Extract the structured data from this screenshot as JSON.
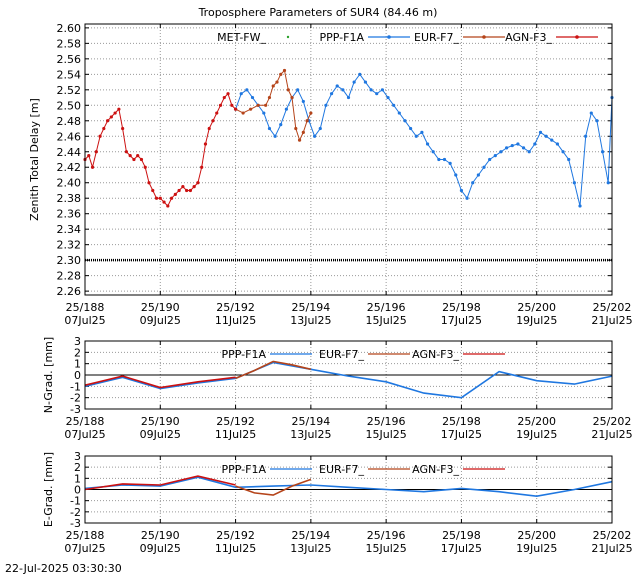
{
  "footer": {
    "timestamp": "22-Jul-2025 03:30:30"
  },
  "colors": {
    "met": "#2ca02c",
    "ppp": "#1f77e0",
    "eur": "#b5441a",
    "agn": "#cc1111",
    "grid": "#999999"
  },
  "x_ticks": [
    {
      "x": 188,
      "top": "25/188",
      "bottom": "07Jul25"
    },
    {
      "x": 190,
      "top": "25/190",
      "bottom": "09Jul25"
    },
    {
      "x": 192,
      "top": "25/192",
      "bottom": "11Jul25"
    },
    {
      "x": 194,
      "top": "25/194",
      "bottom": "13Jul25"
    },
    {
      "x": 196,
      "top": "25/196",
      "bottom": "15Jul25"
    },
    {
      "x": 198,
      "top": "25/198",
      "bottom": "17Jul25"
    },
    {
      "x": 200,
      "top": "25/200",
      "bottom": "19Jul25"
    },
    {
      "x": 202,
      "top": "25/202",
      "bottom": "21Jul25"
    }
  ],
  "chart_data": [
    {
      "type": "line",
      "title": "Troposphere Parameters of SUR4 (84.46 m)",
      "ylabel": "Zenith Total Delay [m]",
      "xlim": [
        188,
        202
      ],
      "ylim": [
        2.255,
        2.605
      ],
      "yticks": [
        2.26,
        2.28,
        2.3,
        2.32,
        2.34,
        2.36,
        2.38,
        2.4,
        2.42,
        2.44,
        2.46,
        2.48,
        2.5,
        2.52,
        2.54,
        2.56,
        2.58,
        2.6
      ],
      "grid": true,
      "legend_position": "top",
      "series": [
        {
          "name": "MET-FW_",
          "color": "#2ca02c",
          "style": "points",
          "x": [
            188,
            202
          ],
          "y": [
            2.3,
            2.3
          ]
        },
        {
          "name": "PPP-F1A",
          "color": "#1f77e0",
          "style": "line-points",
          "x": [
            192.0,
            192.15,
            192.3,
            192.45,
            192.6,
            192.75,
            192.9,
            193.05,
            193.2,
            193.35,
            193.5,
            193.65,
            193.8,
            193.95,
            194.1,
            194.25,
            194.4,
            194.55,
            194.7,
            194.85,
            195.0,
            195.15,
            195.3,
            195.45,
            195.6,
            195.75,
            195.9,
            196.05,
            196.2,
            196.35,
            196.5,
            196.65,
            196.8,
            196.95,
            197.1,
            197.25,
            197.4,
            197.55,
            197.7,
            197.85,
            198.0,
            198.15,
            198.3,
            198.45,
            198.6,
            198.75,
            198.9,
            199.05,
            199.2,
            199.35,
            199.5,
            199.65,
            199.8,
            199.95,
            200.1,
            200.25,
            200.4,
            200.55,
            200.7,
            200.85,
            201.0,
            201.15,
            201.3,
            201.45,
            201.6,
            201.75,
            201.9,
            202.0
          ],
          "y": [
            2.495,
            2.515,
            2.52,
            2.51,
            2.5,
            2.49,
            2.47,
            2.46,
            2.475,
            2.495,
            2.51,
            2.52,
            2.505,
            2.48,
            2.46,
            2.47,
            2.5,
            2.515,
            2.525,
            2.52,
            2.51,
            2.53,
            2.54,
            2.53,
            2.52,
            2.515,
            2.52,
            2.51,
            2.5,
            2.49,
            2.48,
            2.47,
            2.46,
            2.465,
            2.45,
            2.44,
            2.43,
            2.43,
            2.425,
            2.41,
            2.39,
            2.38,
            2.4,
            2.41,
            2.42,
            2.43,
            2.435,
            2.44,
            2.445,
            2.448,
            2.45,
            2.445,
            2.44,
            2.45,
            2.465,
            2.46,
            2.455,
            2.45,
            2.44,
            2.43,
            2.4,
            2.37,
            2.46,
            2.49,
            2.48,
            2.44,
            2.4,
            2.51
          ]
        },
        {
          "name": "EUR-F7_",
          "color": "#b5441a",
          "style": "line-points",
          "x": [
            192.0,
            192.2,
            192.4,
            192.6,
            192.8,
            192.9,
            193.0,
            193.1,
            193.2,
            193.3,
            193.4,
            193.5,
            193.6,
            193.7,
            193.8,
            193.9,
            194.0
          ],
          "y": [
            2.495,
            2.49,
            2.495,
            2.5,
            2.5,
            2.51,
            2.525,
            2.53,
            2.54,
            2.545,
            2.52,
            2.51,
            2.47,
            2.455,
            2.465,
            2.48,
            2.49
          ]
        },
        {
          "name": "AGN-F3_",
          "color": "#cc1111",
          "style": "line-points",
          "x": [
            188.0,
            188.1,
            188.2,
            188.3,
            188.4,
            188.5,
            188.6,
            188.7,
            188.8,
            188.9,
            189.0,
            189.1,
            189.2,
            189.3,
            189.4,
            189.5,
            189.6,
            189.7,
            189.8,
            189.9,
            190.0,
            190.1,
            190.2,
            190.3,
            190.4,
            190.5,
            190.6,
            190.7,
            190.8,
            190.9,
            191.0,
            191.1,
            191.2,
            191.3,
            191.4,
            191.5,
            191.6,
            191.7,
            191.8,
            191.9,
            192.0
          ],
          "y": [
            2.43,
            2.435,
            2.42,
            2.44,
            2.46,
            2.47,
            2.48,
            2.485,
            2.49,
            2.495,
            2.47,
            2.44,
            2.435,
            2.43,
            2.435,
            2.43,
            2.42,
            2.4,
            2.39,
            2.38,
            2.38,
            2.375,
            2.37,
            2.38,
            2.385,
            2.39,
            2.395,
            2.39,
            2.39,
            2.395,
            2.4,
            2.42,
            2.45,
            2.47,
            2.48,
            2.49,
            2.5,
            2.51,
            2.515,
            2.5,
            2.495
          ]
        }
      ]
    },
    {
      "type": "line",
      "ylabel": "N-Grad. [mm]",
      "xlim": [
        188,
        202
      ],
      "ylim": [
        -3,
        3
      ],
      "yticks": [
        -3,
        -2,
        -1,
        0,
        1,
        2,
        3
      ],
      "grid": true,
      "legend_position": "top",
      "series": [
        {
          "name": "PPP-F1A",
          "color": "#1f77e0",
          "x": [
            188,
            189,
            190,
            191,
            192,
            193,
            194,
            195,
            196,
            197,
            198,
            199,
            200,
            201,
            202
          ],
          "y": [
            -1.0,
            -0.2,
            -1.2,
            -0.7,
            -0.3,
            1.1,
            0.5,
            -0.1,
            -0.6,
            -1.6,
            -2.0,
            0.3,
            -0.5,
            -0.8,
            -0.1
          ]
        },
        {
          "name": "EUR-F7_",
          "color": "#b5441a",
          "x": [
            192,
            192.5,
            193,
            193.5,
            194
          ],
          "y": [
            -0.3,
            0.4,
            1.2,
            0.9,
            0.5
          ]
        },
        {
          "name": "AGN-F3_",
          "color": "#cc1111",
          "x": [
            188,
            189,
            190,
            191,
            192
          ],
          "y": [
            -0.9,
            -0.1,
            -1.1,
            -0.6,
            -0.2
          ]
        }
      ]
    },
    {
      "type": "line",
      "ylabel": "E-Grad. [mm]",
      "xlim": [
        188,
        202
      ],
      "ylim": [
        -3,
        3
      ],
      "yticks": [
        -3,
        -2,
        -1,
        0,
        1,
        2,
        3
      ],
      "grid": true,
      "legend_position": "top",
      "series": [
        {
          "name": "PPP-F1A",
          "color": "#1f77e0",
          "x": [
            188,
            189,
            190,
            191,
            192,
            193,
            194,
            195,
            196,
            197,
            198,
            199,
            200,
            201,
            202
          ],
          "y": [
            0.1,
            0.4,
            0.3,
            1.1,
            0.2,
            0.3,
            0.4,
            0.2,
            0.0,
            -0.2,
            0.1,
            -0.2,
            -0.6,
            0.0,
            0.7
          ]
        },
        {
          "name": "EUR-F7_",
          "color": "#b5441a",
          "x": [
            192,
            192.5,
            193,
            193.5,
            194
          ],
          "y": [
            0.3,
            -0.3,
            -0.5,
            0.3,
            0.9
          ]
        },
        {
          "name": "AGN-F3_",
          "color": "#cc1111",
          "x": [
            188,
            189,
            190,
            191,
            192
          ],
          "y": [
            0.0,
            0.5,
            0.4,
            1.2,
            0.4
          ]
        }
      ]
    }
  ]
}
